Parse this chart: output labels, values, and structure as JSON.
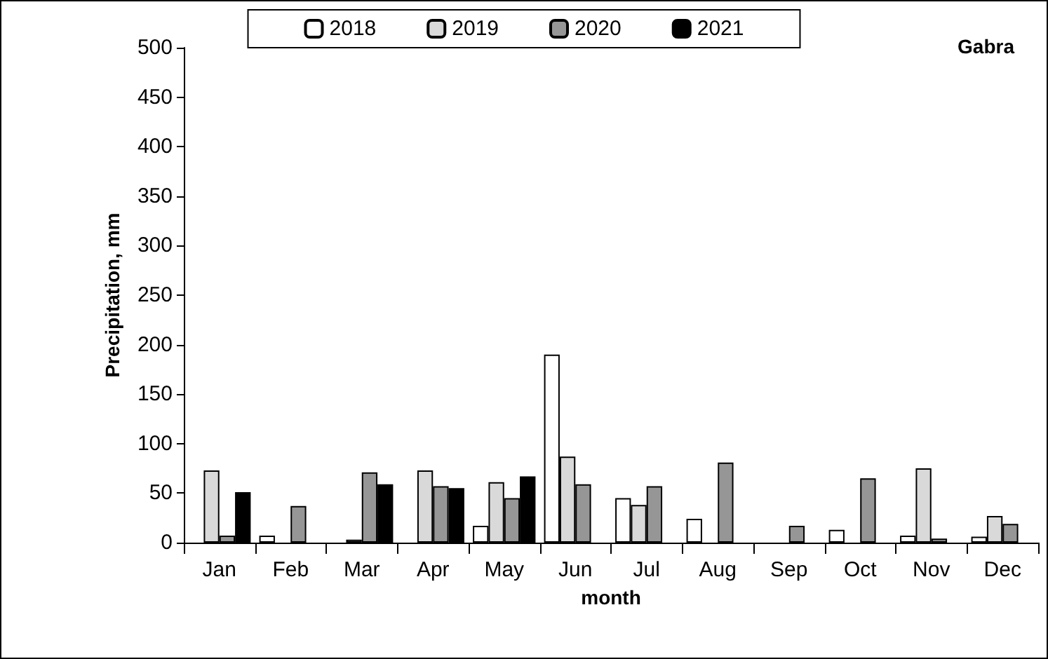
{
  "chart_data": {
    "type": "bar",
    "title": "Gabra",
    "xlabel": "month",
    "ylabel": "Precipitation, mm",
    "categories": [
      "Jan",
      "Feb",
      "Mar",
      "Apr",
      "May",
      "Jun",
      "Jul",
      "Aug",
      "Sep",
      "Oct",
      "Nov",
      "Dec"
    ],
    "series": [
      {
        "name": "2018",
        "color": "#ffffff",
        "values": [
          null,
          7,
          null,
          null,
          17,
          190,
          45,
          24,
          null,
          13,
          7,
          6
        ]
      },
      {
        "name": "2019",
        "color": "#d9d9d9",
        "values": [
          73,
          null,
          3,
          73,
          61,
          87,
          38,
          null,
          null,
          null,
          75,
          27
        ]
      },
      {
        "name": "2020",
        "color": "#969696",
        "values": [
          7,
          37,
          71,
          57,
          45,
          59,
          57,
          81,
          17,
          65,
          4,
          19
        ]
      },
      {
        "name": "2021",
        "color": "#000000",
        "values": [
          51,
          null,
          59,
          55,
          67,
          null,
          null,
          null,
          null,
          null,
          null,
          null
        ]
      }
    ],
    "ylim": [
      0,
      500
    ],
    "yticks": [
      0,
      50,
      100,
      150,
      200,
      250,
      300,
      350,
      400,
      450,
      500
    ],
    "grid": false,
    "legend": "top"
  }
}
